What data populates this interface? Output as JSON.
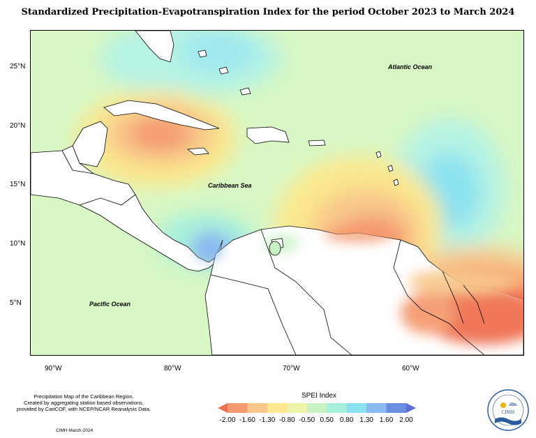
{
  "title": "Standardized Precipitation-Evapotranspiration Index for the period October 2023 to March 2024",
  "map": {
    "lat_labels": [
      "25°N",
      "20°N",
      "15°N",
      "10°N",
      "5°N"
    ],
    "lon_labels": [
      "90°W",
      "80°W",
      "70°W",
      "60°W"
    ],
    "ocean_labels": {
      "atlantic": "Atlantic Ocean",
      "caribbean": "Caribbean Sea",
      "pacific": "Pacific Ocean"
    },
    "background_color": "#d8f7c4",
    "land_color": "#ffffff"
  },
  "legend": {
    "title": "SPEI Index",
    "ticks": [
      "-2.00",
      "-1.60",
      "-1.30",
      "-0.80",
      "-0.50",
      "0.50",
      "0.80",
      "1.30",
      "1.60",
      "2.00"
    ],
    "colors": [
      "#f07050",
      "#f59a70",
      "#f8c88a",
      "#fbe88e",
      "#eef5a8",
      "#c6f2c4",
      "#a8f0dc",
      "#8ae2f0",
      "#8ab8f0",
      "#6a8ee0",
      "#5b6fd8"
    ]
  },
  "footnote": {
    "line1": "Precipitation Map of the Caribbean Region.",
    "line2": "Created by aggregating station based observations,",
    "line3": "provided by CariCOF, with NCEP/NCAR Reanalysis Data."
  },
  "credit": "CIMH March-2024",
  "logo": {
    "text": "CIMH",
    "icon": "cimh-logo-icon"
  }
}
